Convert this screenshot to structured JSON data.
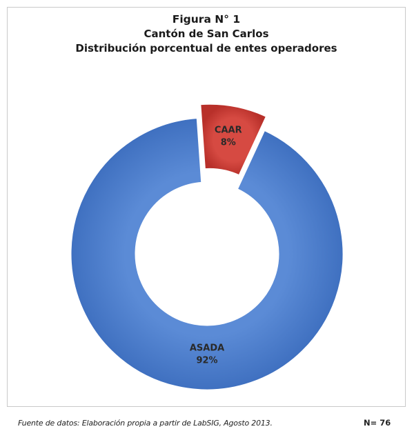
{
  "chart_data": {
    "type": "pie",
    "variant": "doughnut",
    "title": "Figura N° 1",
    "subtitle": [
      "Cantón de San Carlos",
      "Distribución porcentual de entes operadores"
    ],
    "slices": [
      {
        "label": "ASADA",
        "value": 92,
        "value_label": "92%",
        "color": "#4a7ccc",
        "exploded": false
      },
      {
        "label": "CAAR",
        "value": 8,
        "value_label": "8%",
        "color": "#cc3a33",
        "exploded": true
      }
    ],
    "legend": "none"
  },
  "footer": {
    "source": "Fuente de datos: Elaboración propia a partir de LabSIG, Agosto 2013.",
    "n_label": "N= 76"
  },
  "colors": {
    "asada_fill": "#4a7ccc",
    "asada_edge": "#3b66ab",
    "caar_fill": "#cc3a33",
    "caar_edge": "#a52a24",
    "frame": "#c9c9c9"
  }
}
